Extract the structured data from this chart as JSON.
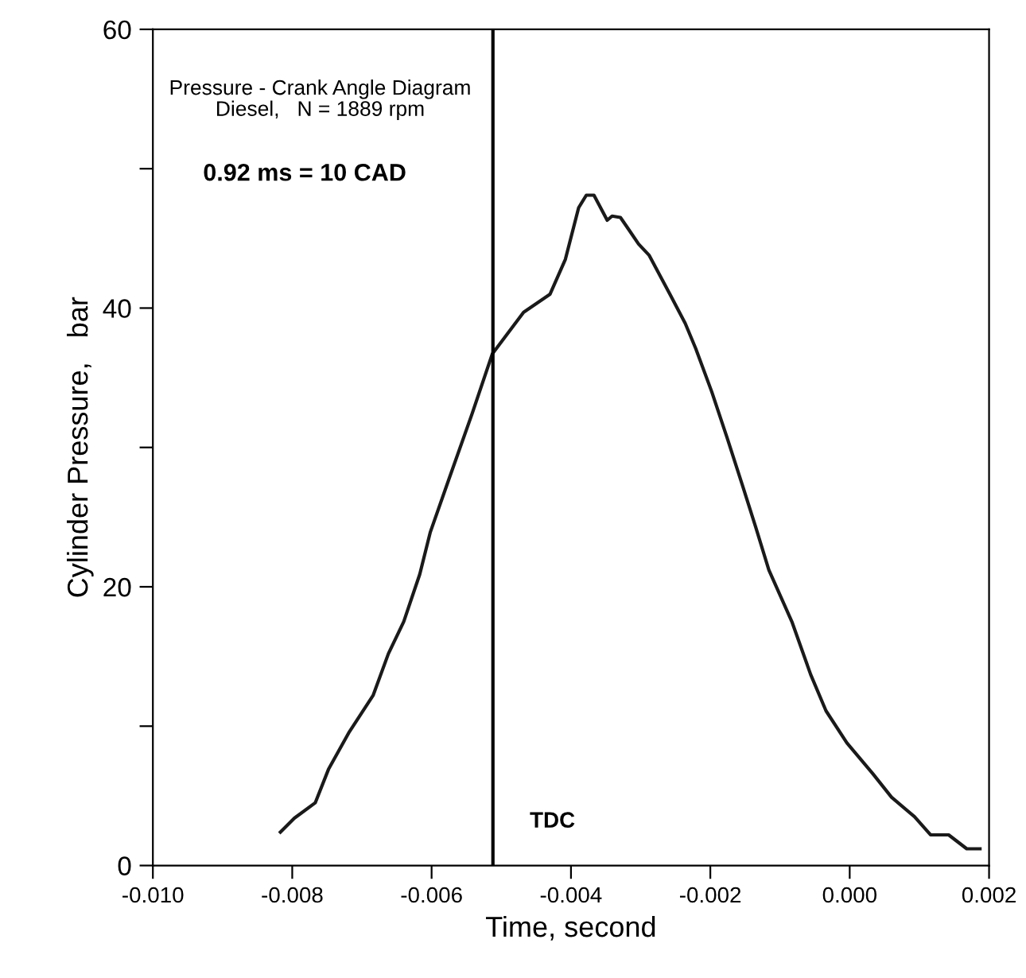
{
  "chart_data": {
    "type": "line",
    "xlabel": "Time, second",
    "ylabel": "Cylinder Pressure,   bar",
    "annotations": [
      "Pressure - Crank Angle Diagram\nDiesel,   N = 1889 rpm",
      "0.92 ms = 10 CAD"
    ],
    "xlim": [
      -0.01,
      0.002
    ],
    "ylim": [
      0,
      60
    ],
    "xticks": [
      {
        "value": -0.01,
        "label": "-0.010"
      },
      {
        "value": -0.008,
        "label": "-0.008"
      },
      {
        "value": -0.006,
        "label": "-0.006"
      },
      {
        "value": -0.004,
        "label": "-0.004"
      },
      {
        "value": -0.002,
        "label": "-0.002"
      },
      {
        "value": 0.0,
        "label": "0.000"
      },
      {
        "value": 0.002,
        "label": "0.002"
      }
    ],
    "yticks": [
      0,
      {
        "value": 10,
        "label": null
      },
      20,
      {
        "value": 30,
        "label": null
      },
      40,
      {
        "value": 50,
        "label": null
      },
      60
    ],
    "grid": false,
    "legend": false,
    "marker": "none",
    "line_style": "solid",
    "ref_lines": [
      {
        "axis": "x",
        "value": -0.00512,
        "label": "TDC",
        "color": "#000000",
        "line_style": "solid"
      }
    ],
    "series": [
      {
        "color": "#1a1a1a",
        "x": [
          -0.00817,
          -0.00797,
          -0.00767,
          -0.00748,
          -0.00718,
          -0.00684,
          -0.00662,
          -0.0064,
          -0.00617,
          -0.00602,
          -0.00576,
          -0.00542,
          -0.00513,
          -0.00468,
          -0.0043,
          -0.00408,
          -0.00389,
          -0.00378,
          -0.00367,
          -0.00348,
          -0.00341,
          -0.00329,
          -0.00318,
          -0.00303,
          -0.00288,
          -0.00258,
          -0.00236,
          -0.00221,
          -0.00198,
          -0.00176,
          -0.00154,
          -0.00135,
          -0.00116,
          -0.00083,
          -0.00056,
          -0.00034,
          -4e-05,
          0.00033,
          0.0006,
          0.00093,
          0.00116,
          0.00142,
          0.00168,
          0.00187
        ],
        "values": [
          2.4,
          3.4,
          4.5,
          6.9,
          9.6,
          12.2,
          15.2,
          17.5,
          20.9,
          23.9,
          27.6,
          32.4,
          36.7,
          39.7,
          41.0,
          43.5,
          47.2,
          48.1,
          48.1,
          46.3,
          46.6,
          46.5,
          45.7,
          44.6,
          43.8,
          41.0,
          38.9,
          37.1,
          34.0,
          30.7,
          27.3,
          24.3,
          21.2,
          17.5,
          13.7,
          11.1,
          8.8,
          6.6,
          4.9,
          3.5,
          2.2,
          2.2,
          1.2,
          1.2
        ]
      }
    ]
  }
}
